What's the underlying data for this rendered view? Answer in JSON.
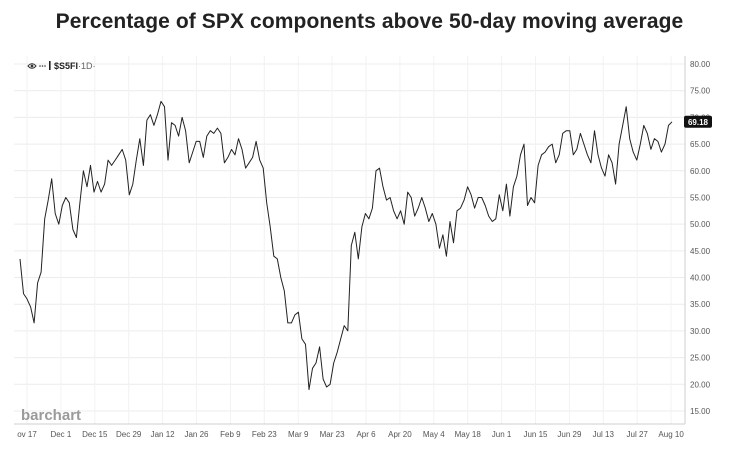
{
  "chart_data": {
    "type": "line",
    "title": "Percentage of SPX components above 50-day moving average",
    "symbol": "$S5FI",
    "interval": "1D",
    "watermark": "barchart",
    "last_value": "69.18",
    "ylim": [
      13,
      82
    ],
    "yticks": [
      "80.00",
      "75.00",
      "70.00",
      "65.00",
      "60.00",
      "55.00",
      "50.00",
      "45.00",
      "40.00",
      "35.00",
      "30.00",
      "25.00",
      "20.00",
      "15.00"
    ],
    "xlabels": [
      "ov 17",
      "Dec 1",
      "Dec 15",
      "Dec 29",
      "Jan 12",
      "Jan 26",
      "Feb 9",
      "Feb 23",
      "Mar 9",
      "Mar 23",
      "Apr 6",
      "Apr 20",
      "May 4",
      "May 18",
      "Jun 1",
      "Jun 15",
      "Jun 29",
      "Jul 13",
      "Jul 27",
      "Aug 10"
    ],
    "grid": true,
    "line_color": "#222222",
    "values": [
      43.5,
      37,
      36,
      34.5,
      31.5,
      39,
      41,
      51,
      54.5,
      58.5,
      52,
      50,
      53.5,
      55,
      54,
      49,
      47.5,
      54,
      60,
      57,
      61,
      56,
      58,
      56,
      57.5,
      62,
      61,
      62,
      63,
      64,
      62,
      55.5,
      57.5,
      62,
      66,
      61,
      69.5,
      70.5,
      68.5,
      70.5,
      73,
      72,
      62,
      69,
      68.5,
      66.5,
      70,
      67.5,
      61.5,
      63.5,
      65.5,
      65.5,
      62.5,
      66.5,
      67.5,
      67,
      68,
      67,
      61.5,
      62.5,
      64,
      63,
      66,
      64,
      60.5,
      61.5,
      62.5,
      65.5,
      62,
      60.5,
      54,
      49.5,
      44,
      43.5,
      40,
      37.5,
      31.5,
      31.5,
      33,
      33.5,
      28.5,
      27.5,
      19,
      23,
      24,
      27,
      21,
      19.5,
      20,
      24,
      26,
      28.5,
      31,
      30,
      46,
      48.5,
      43.5,
      49.5,
      52,
      51,
      53,
      60,
      60.5,
      57,
      54.5,
      55,
      52.5,
      51,
      52.5,
      50,
      56,
      55,
      51.5,
      53,
      55,
      53,
      50.5,
      52,
      50,
      45.5,
      48,
      44,
      50.5,
      46.5,
      52.5,
      53,
      54.5,
      57,
      55.5,
      53,
      55,
      55,
      53.5,
      51.5,
      50.5,
      51,
      55.5,
      52.5,
      57.5,
      51.5,
      57,
      59,
      63,
      65,
      53.5,
      55,
      54,
      61,
      63,
      63.5,
      64.5,
      65,
      61.5,
      63,
      67,
      67.5,
      67.5,
      63,
      64,
      67,
      65,
      63,
      61.5,
      67.5,
      63,
      60.5,
      59,
      63,
      61.5,
      57.5,
      65,
      68.5,
      72,
      66,
      63.5,
      62,
      65,
      68.5,
      67,
      64,
      66,
      65.5,
      63.5,
      65,
      68.5,
      69.18
    ]
  }
}
